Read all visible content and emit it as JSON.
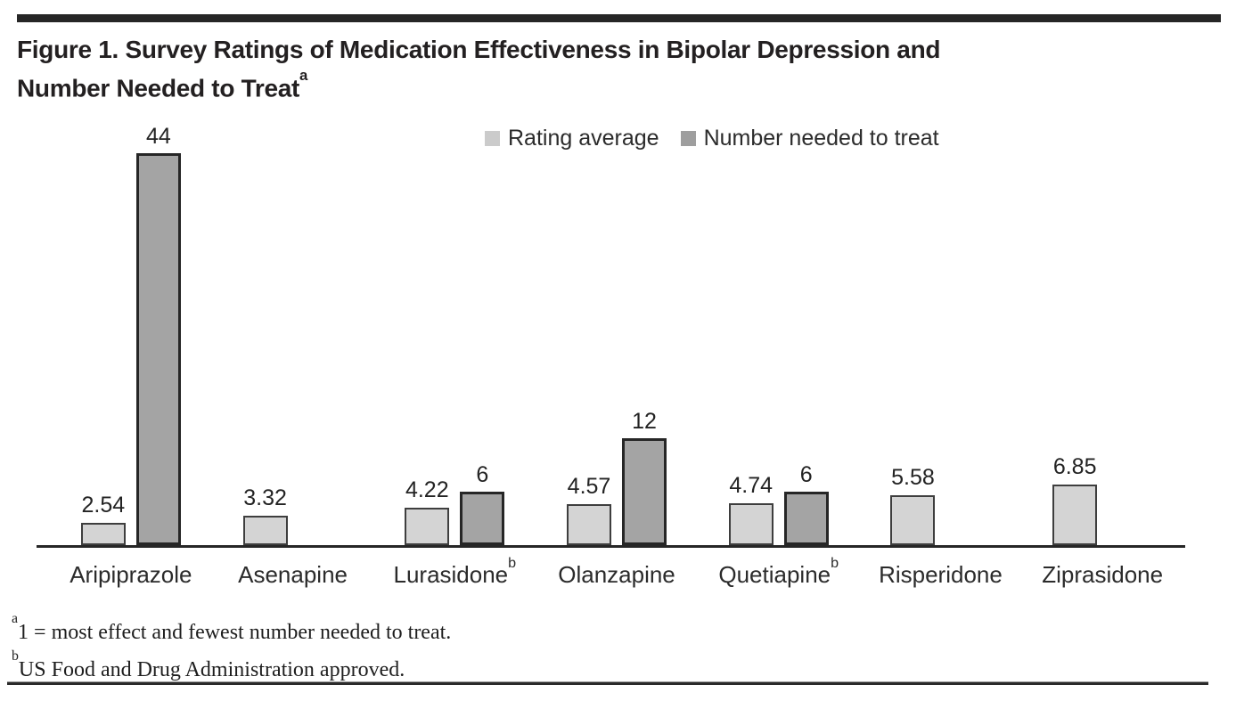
{
  "page": {
    "title_line1": "Figure 1. Survey Ratings of Medication Effectiveness in Bipolar Depression and",
    "title_line2": "Number Needed to Treat",
    "title_superscript": "a"
  },
  "legend": {
    "items": [
      {
        "label": "Rating average",
        "color": "#cbcbcb"
      },
      {
        "label": "Number needed to treat",
        "color": "#9e9e9e"
      }
    ]
  },
  "chart_data": {
    "type": "bar",
    "title": "Figure 1. Survey Ratings of Medication Effectiveness in Bipolar Depression and Number Needed to Treat",
    "categories": [
      "Aripiprazole",
      "Asenapine",
      "Lurasidone",
      "Olanzapine",
      "Quetiapine",
      "Risperidone",
      "Ziprasidone"
    ],
    "category_superscripts": [
      "",
      "",
      "b",
      "",
      "b",
      "",
      ""
    ],
    "series": [
      {
        "name": "Rating average",
        "fill": "#d4d4d4",
        "border": "#3e3e3e",
        "values": [
          2.54,
          3.32,
          4.22,
          4.57,
          4.74,
          5.58,
          6.85
        ],
        "labels": [
          "2.54",
          "3.32",
          "4.22",
          "4.57",
          "4.74",
          "5.58",
          "6.85"
        ]
      },
      {
        "name": "Number needed to treat",
        "fill": "#a4a4a4",
        "border": "#262626",
        "values": [
          44,
          null,
          6,
          12,
          6,
          null,
          null
        ],
        "labels": [
          "44",
          null,
          "6",
          "12",
          "6",
          null,
          null
        ]
      }
    ],
    "value_axis": {
      "visible": false,
      "implied_range": [
        0,
        44
      ]
    },
    "grid": false,
    "data_labels": true,
    "legend_position": "top-center"
  },
  "footnotes": [
    {
      "marker": "a",
      "text": "1 = most effect and fewest number needed to treat."
    },
    {
      "marker": "b",
      "text": "US Food and Drug Administration approved."
    }
  ]
}
